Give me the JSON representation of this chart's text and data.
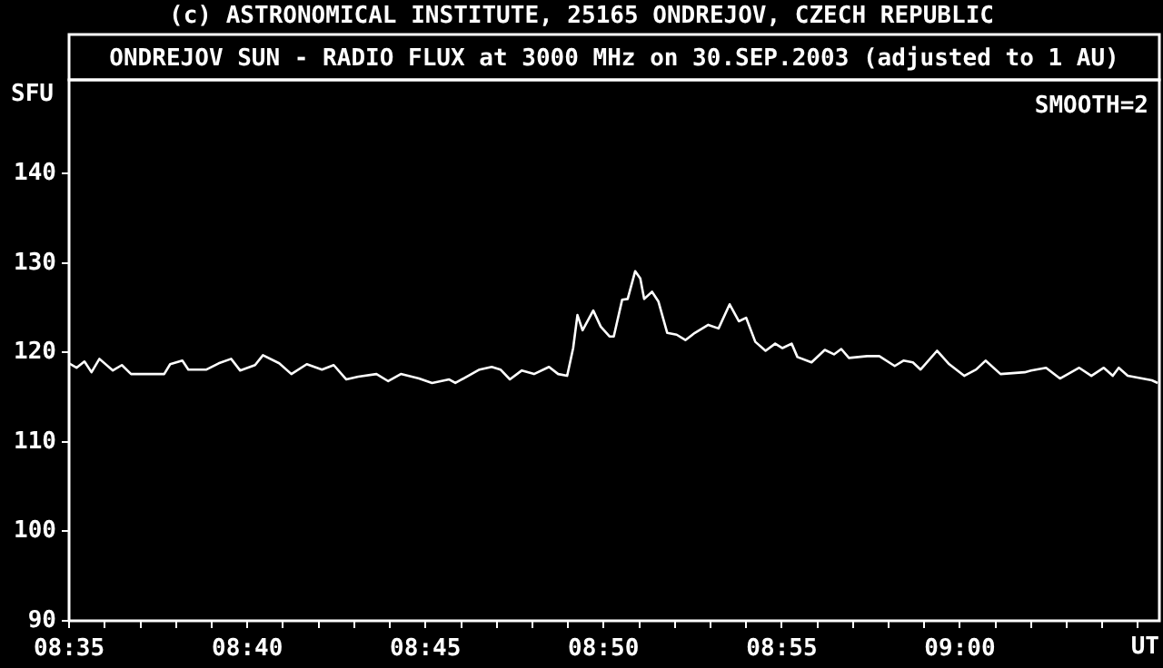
{
  "chart_data": {
    "type": "line",
    "title": "ONDREJOV SUN - RADIO FLUX at 3000 MHz on 30.SEP.2003 (adjusted to 1 AU)",
    "ylabel": "SFU",
    "xlabel": "UT",
    "annotations": [
      "(c) ASTRONOMICAL INSTITUTE, 25165 ONDREJOV, CZECH REPUBLIC",
      "SMOOTH=2"
    ],
    "x": [
      8.5833,
      8.5868,
      8.5905,
      8.5938,
      8.5975,
      8.6038,
      8.608,
      8.6123,
      8.6165,
      8.6278,
      8.6306,
      8.6363,
      8.6391,
      8.6476,
      8.6533,
      8.6591,
      8.6633,
      8.6703,
      8.674,
      8.6816,
      8.6873,
      8.6945,
      8.7016,
      8.7071,
      8.713,
      8.7186,
      8.7271,
      8.7326,
      8.7385,
      8.747,
      8.7531,
      8.7611,
      8.764,
      8.7753,
      8.781,
      8.7851,
      8.7895,
      8.7951,
      8.8008,
      8.8078,
      8.8121,
      8.8163,
      8.8191,
      8.8211,
      8.8235,
      8.8285,
      8.832,
      8.8361,
      8.8381,
      8.842,
      8.8446,
      8.8481,
      8.8505,
      8.8523,
      8.856,
      8.859,
      8.8631,
      8.8675,
      8.8716,
      8.876,
      8.8823,
      8.8871,
      8.8923,
      8.8966,
      8.9,
      8.9043,
      8.9091,
      8.9136,
      8.917,
      8.9213,
      8.924,
      8.9306,
      8.9368,
      8.9411,
      8.9445,
      8.9481,
      8.9566,
      8.9623,
      8.9695,
      8.9736,
      8.978,
      8.9816,
      8.9893,
      8.995,
      9.002,
      9.0076,
      9.012,
      9.019,
      9.0303,
      9.0333,
      9.0403,
      9.0468,
      9.0558,
      9.0615,
      9.0673,
      9.0715,
      9.0743,
      9.0785,
      9.0898,
      9.0925
    ],
    "series": [
      {
        "color": "#ffffff",
        "values": [
          118.8,
          118.3,
          119.0,
          117.8,
          119.3,
          118.0,
          118.6,
          117.6,
          117.6,
          117.6,
          118.7,
          119.1,
          118.1,
          118.1,
          118.8,
          119.3,
          118.0,
          118.6,
          119.7,
          118.8,
          117.6,
          118.7,
          118.1,
          118.6,
          117.0,
          117.3,
          117.6,
          116.8,
          117.6,
          117.1,
          116.6,
          117.0,
          116.6,
          118.1,
          118.4,
          118.1,
          117.0,
          118.0,
          117.6,
          118.4,
          117.6,
          117.4,
          120.5,
          124.2,
          122.5,
          124.7,
          122.9,
          121.8,
          121.8,
          125.9,
          126.0,
          129.1,
          128.3,
          126.0,
          126.8,
          125.7,
          122.2,
          122.0,
          121.4,
          122.2,
          123.1,
          122.7,
          125.4,
          123.5,
          123.9,
          121.2,
          120.2,
          121.0,
          120.5,
          121.0,
          119.5,
          118.9,
          120.3,
          119.8,
          120.4,
          119.4,
          119.6,
          119.6,
          118.5,
          119.1,
          118.9,
          118.1,
          120.2,
          118.7,
          117.4,
          118.1,
          119.1,
          117.6,
          117.8,
          118.0,
          118.3,
          117.1,
          118.3,
          117.4,
          118.3,
          117.4,
          118.3,
          117.4,
          116.9,
          116.6
        ]
      }
    ],
    "xlim": [
      8.5833,
      9.0933
    ],
    "xticks": [
      {
        "value": 8.5833,
        "label": "08:35"
      },
      {
        "value": 8.6,
        "label": null
      },
      {
        "value": 8.6167,
        "label": null
      },
      {
        "value": 8.6333,
        "label": null
      },
      {
        "value": 8.65,
        "label": null
      },
      {
        "value": 8.6667,
        "label": "08:40"
      },
      {
        "value": 8.6833,
        "label": null
      },
      {
        "value": 8.7,
        "label": null
      },
      {
        "value": 8.7167,
        "label": null
      },
      {
        "value": 8.7333,
        "label": null
      },
      {
        "value": 8.75,
        "label": "08:45"
      },
      {
        "value": 8.7667,
        "label": null
      },
      {
        "value": 8.7833,
        "label": null
      },
      {
        "value": 8.8,
        "label": null
      },
      {
        "value": 8.8167,
        "label": null
      },
      {
        "value": 8.8333,
        "label": "08:50"
      },
      {
        "value": 8.85,
        "label": null
      },
      {
        "value": 8.8667,
        "label": null
      },
      {
        "value": 8.8833,
        "label": null
      },
      {
        "value": 8.9,
        "label": null
      },
      {
        "value": 8.9167,
        "label": "08:55"
      },
      {
        "value": 8.9333,
        "label": null
      },
      {
        "value": 8.95,
        "label": null
      },
      {
        "value": 8.9667,
        "label": null
      },
      {
        "value": 8.9833,
        "label": null
      },
      {
        "value": 9.0,
        "label": "09:00"
      },
      {
        "value": 9.0167,
        "label": null
      },
      {
        "value": 9.0333,
        "label": null
      },
      {
        "value": 9.05,
        "label": null
      },
      {
        "value": 9.0667,
        "label": null
      },
      {
        "value": 9.0833,
        "label": null
      }
    ],
    "ylim": [
      90,
      150.5
    ],
    "yticks": [
      90,
      100,
      110,
      120,
      130,
      140
    ]
  }
}
